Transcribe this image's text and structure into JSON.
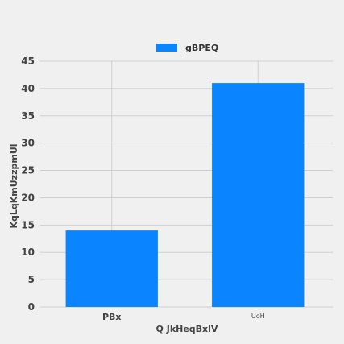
{
  "chart_data": {
    "type": "bar",
    "categories": [
      "PBx",
      "UoH"
    ],
    "series": [
      {
        "name": "gBPEQ",
        "values": [
          14,
          41
        ]
      }
    ],
    "xlabel": "Q JkHeqBxlV",
    "ylabel": "KqLqKmUzzpmUl",
    "ylim": [
      0,
      45
    ],
    "yticks": [
      0,
      5,
      10,
      15,
      20,
      25,
      30,
      35,
      40,
      45
    ],
    "grid": true,
    "legend_position": "top-center",
    "colors": {
      "bar": "#0a84ff",
      "grid": "#cfcfcf",
      "background": "#f0f0f0"
    }
  }
}
